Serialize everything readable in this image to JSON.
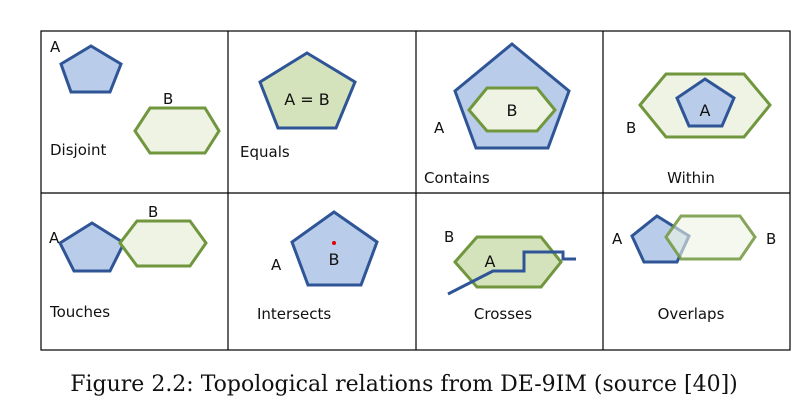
{
  "colors": {
    "blue_stroke": "#2f5597",
    "blue_fill": "#b9cdea",
    "green_stroke": "#70963e",
    "green_fill_light": "#eef3e3",
    "green_fill_mid": "#d5e3bd",
    "point": "#e00000"
  },
  "cells": {
    "disjoint": {
      "caption": "Disjoint",
      "a": "A",
      "b": "B"
    },
    "equals": {
      "caption": "Equals",
      "ab": "A = B"
    },
    "contains": {
      "caption": "Contains",
      "a": "A",
      "b": "B"
    },
    "within": {
      "caption": "Within",
      "a": "A",
      "b": "B"
    },
    "touches": {
      "caption": "Touches",
      "a": "A",
      "b": "B"
    },
    "intersects": {
      "caption": "Intersects",
      "a": "A",
      "b": "B"
    },
    "crosses": {
      "caption": "Crosses",
      "a": "A",
      "b": "B"
    },
    "overlaps": {
      "caption": "Overlaps",
      "a": "A",
      "b": "B"
    }
  },
  "caption": "Figure 2.2: Topological relations from DE-9IM (source [40])"
}
